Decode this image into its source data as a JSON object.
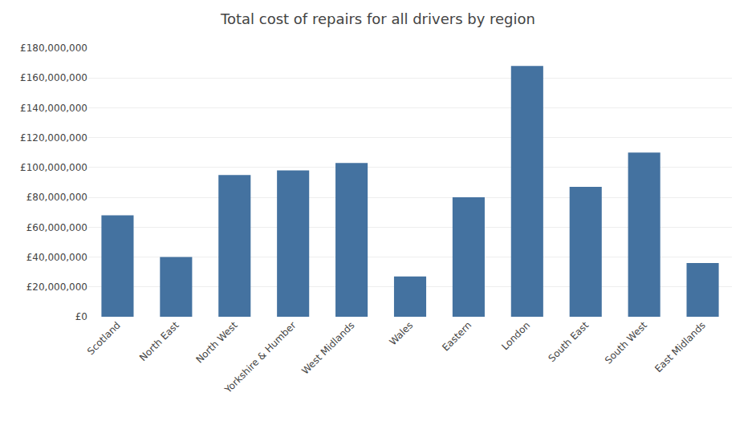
{
  "chart_data": {
    "type": "bar",
    "title": "Total cost of repairs for all drivers by region",
    "categories": [
      "Scotland",
      "North East",
      "North West",
      "Yorkshire & Humber",
      "West Midlands",
      "Wales",
      "Eastern",
      "London",
      "South East",
      "South West",
      "East Midlands"
    ],
    "values": [
      68000000,
      40000000,
      95000000,
      98000000,
      103000000,
      27000000,
      80000000,
      168000000,
      87000000,
      110000000,
      36000000
    ],
    "color": "#4472a0",
    "ylim": [
      0,
      180000000
    ],
    "yticks": [
      {
        "value": 0,
        "label": "£0"
      },
      {
        "value": 20000000,
        "label": "£20,000,000"
      },
      {
        "value": 40000000,
        "label": "£40,000,000"
      },
      {
        "value": 60000000,
        "label": "£60,000,000"
      },
      {
        "value": 80000000,
        "label": "£80,000,000"
      },
      {
        "value": 100000000,
        "label": "£100,000,000"
      },
      {
        "value": 120000000,
        "label": "£120,000,000"
      },
      {
        "value": 140000000,
        "label": "£140,000,000"
      },
      {
        "value": 160000000,
        "label": "£160,000,000"
      },
      {
        "value": 180000000,
        "label": "£180,000,000"
      }
    ],
    "grid": true
  }
}
